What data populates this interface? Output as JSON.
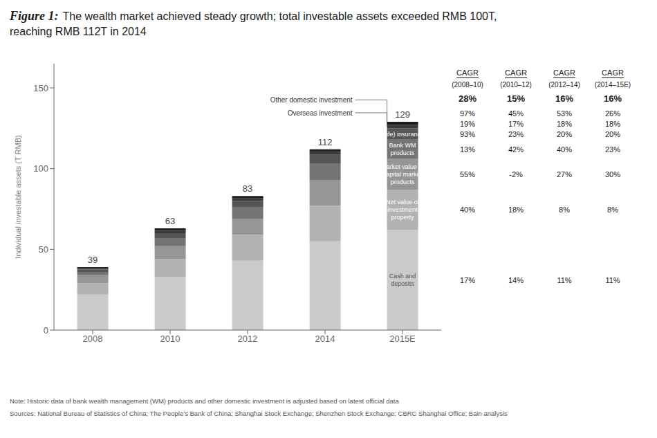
{
  "chart_data": {
    "type": "bar",
    "stacked": true,
    "title": [
      "Figure 1:",
      "The wealth market achieved steady growth; total investable assets exceeded RMB 100T,",
      "reaching RMB 112T in 2014"
    ],
    "categories": [
      "2008",
      "2010",
      "2012",
      "2014",
      "2015E"
    ],
    "series": [
      {
        "name": "Cash and\ndeposits",
        "color": "#cacaca",
        "values": [
          22,
          33,
          43,
          55,
          62
        ],
        "cagr": [
          "17%",
          "14%",
          "11%",
          "11%"
        ]
      },
      {
        "name": "Net value of\ninvestment\nproperty",
        "color": "#b2b2b2",
        "values": [
          7,
          11,
          16,
          22,
          25
        ],
        "cagr": [
          "40%",
          "18%",
          "8%",
          "8%"
        ]
      },
      {
        "name": "Market value of\ncapital market\nproducts",
        "color": "#969696",
        "values": [
          5,
          8,
          10,
          16,
          19
        ],
        "cagr": [
          "55%",
          "-2%",
          "27%",
          "30%"
        ]
      },
      {
        "name": "Bank WM\nproducts",
        "color": "#747474",
        "values": [
          2,
          5,
          7,
          10,
          12
        ],
        "cagr": [
          "13%",
          "42%",
          "40%",
          "23%"
        ]
      },
      {
        "name": "(Life) insurance",
        "color": "#555555",
        "values": [
          1.5,
          3,
          4,
          5.5,
          7
        ],
        "cagr": [
          "93%",
          "23%",
          "20%",
          "20%"
        ]
      },
      {
        "name": "Overseas investment",
        "color": "#3a3a3a",
        "values": [
          0.7,
          1.5,
          1.5,
          2,
          2
        ],
        "cagr": [
          "19%",
          "17%",
          "18%",
          "18%"
        ]
      },
      {
        "name": "Other domestic investment",
        "color": "#1e1e1e",
        "values": [
          0.8,
          1.5,
          1.5,
          1.5,
          2
        ],
        "cagr": [
          "97%",
          "45%",
          "53%",
          "26%"
        ]
      }
    ],
    "totals": [
      39,
      63,
      83,
      112,
      129
    ],
    "ylabel": "Individual investable assets (T RMB)",
    "ylim": [
      0,
      165
    ],
    "yticks": [
      0,
      50,
      100,
      150
    ],
    "grid": false,
    "cagr_header": "CAGR",
    "cagr_periods": [
      "(2008–10)",
      "(2010–12)",
      "(2012–14)",
      "(2014–15E)"
    ],
    "cagr_total": [
      "28%",
      "15%",
      "16%",
      "16%"
    ],
    "notes": [
      "Note: Historic data of bank wealth management (WM) products and other domestic investment is adjusted based on latest official data",
      "Sources: National Bureau of Statistics of China; The People’s Bank of China; Shanghai Stock Exchange; Shenzhen Stock Exchange; CBRC Shanghai Office; Bain analysis"
    ]
  }
}
